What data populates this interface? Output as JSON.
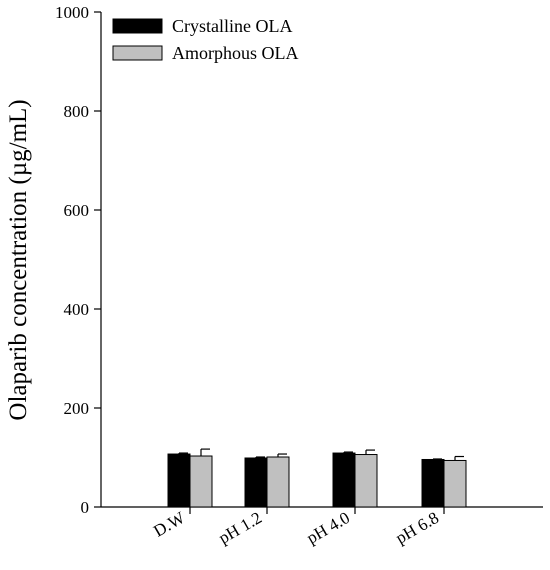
{
  "chart_data": {
    "type": "bar",
    "title": "",
    "ylabel": "Olaparib concentration (µg/mL)",
    "xlabel": "",
    "ylim": [
      0,
      1000
    ],
    "yticks": [
      0,
      200,
      400,
      600,
      800,
      1000
    ],
    "categories": [
      "D.W",
      "pH 1.2",
      "pH 4.0",
      "pH 6.8"
    ],
    "legend_position": "top-left",
    "series": [
      {
        "name": "Crystalline OLA",
        "color": "#000000",
        "values": [
          107,
          99,
          109,
          96
        ],
        "errors": [
          2,
          2,
          2,
          1
        ]
      },
      {
        "name": "Amorphous OLA",
        "color": "#c0c0c0",
        "values": [
          103,
          101,
          106,
          94
        ],
        "errors": [
          14,
          6,
          9,
          8
        ]
      }
    ]
  }
}
